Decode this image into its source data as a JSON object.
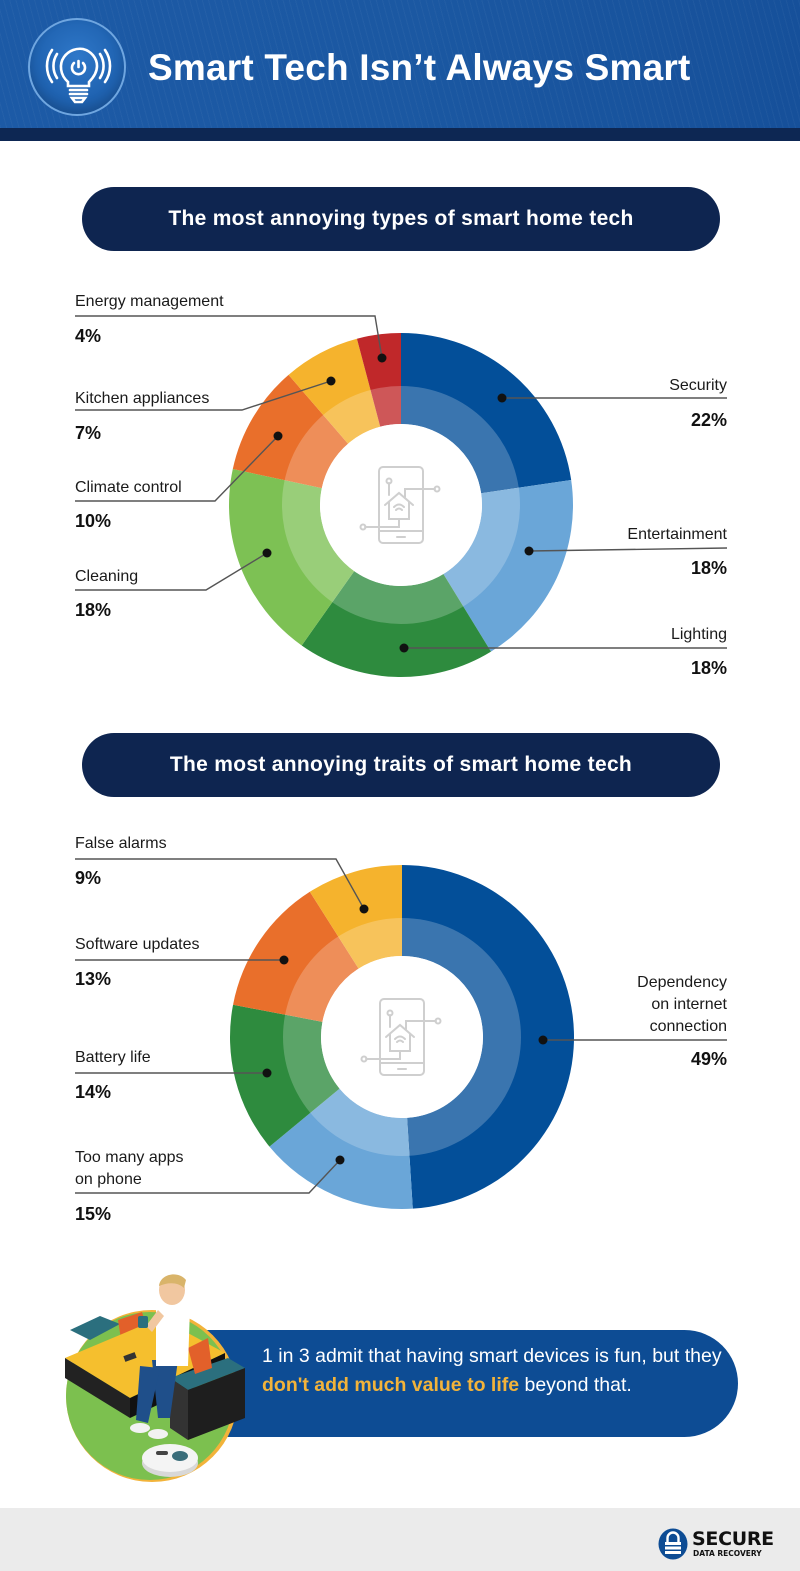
{
  "header": {
    "title": "Smart Tech Isn’t Always Smart",
    "icon": "smart-lightbulb-icon"
  },
  "sections": [
    {
      "title": "The most annoying types of smart home tech"
    },
    {
      "title": "The most annoying traits of smart home tech"
    }
  ],
  "center_icon": "smart-home-phone-icon",
  "chart_data": [
    {
      "type": "pie",
      "variant": "donut",
      "title": "The most annoying types of smart home tech",
      "categories": [
        "Security",
        "Entertainment",
        "Lighting",
        "Cleaning",
        "Climate control",
        "Kitchen appliances",
        "Energy management"
      ],
      "values": [
        22,
        18,
        18,
        18,
        10,
        7,
        4
      ],
      "unit": "%",
      "colors": [
        "#034f99",
        "#6aa6d8",
        "#2e8b3e",
        "#7dc154",
        "#e96f2b",
        "#f5b32d",
        "#c0282a"
      ],
      "labels": [
        {
          "name": "Security",
          "value": "22%",
          "side": "right"
        },
        {
          "name": "Entertainment",
          "value": "18%",
          "side": "right"
        },
        {
          "name": "Lighting",
          "value": "18%",
          "side": "right"
        },
        {
          "name": "Cleaning",
          "value": "18%",
          "side": "left"
        },
        {
          "name": "Climate control",
          "value": "10%",
          "side": "left"
        },
        {
          "name": "Kitchen appliances",
          "value": "7%",
          "side": "left"
        },
        {
          "name": "Energy management",
          "value": "4%",
          "side": "left"
        }
      ],
      "legend": "none (leader-line labels)",
      "start_angle": "12 o'clock, clockwise"
    },
    {
      "type": "pie",
      "variant": "donut",
      "title": "The most annoying traits of smart home tech",
      "categories": [
        "Dependency on internet connection",
        "Too many apps on phone",
        "Battery life",
        "Software updates",
        "False alarms"
      ],
      "values": [
        49,
        15,
        14,
        13,
        9
      ],
      "unit": "%",
      "colors": [
        "#034f99",
        "#6aa6d8",
        "#2e8b3e",
        "#e96f2b",
        "#f5b32d"
      ],
      "labels": [
        {
          "name": "Dependency\non internet\nconnection",
          "value": "49%",
          "side": "right"
        },
        {
          "name": "Too many apps\non phone",
          "value": "15%",
          "side": "left"
        },
        {
          "name": "Battery life",
          "value": "14%",
          "side": "left"
        },
        {
          "name": "Software updates",
          "value": "13%",
          "side": "left"
        },
        {
          "name": "False alarms",
          "value": "9%",
          "side": "left"
        }
      ],
      "legend": "none (leader-line labels)",
      "start_angle": "12 o'clock, clockwise"
    }
  ],
  "callout": {
    "text_before": "1 in 3 admit that having smart devices is fun, but they ",
    "highlight": "don't add much value to life",
    "text_after": " beyond that.",
    "highlight_color": "#f2b33a",
    "illustration": "man-on-couch-with-robot-vacuum"
  },
  "footer": {
    "brand_name": "SECURE",
    "brand_sub": "DATA RECOVERY",
    "brand_icon": "padlock-icon"
  }
}
